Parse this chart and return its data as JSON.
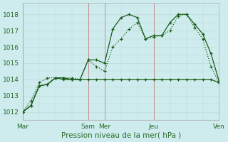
{
  "bg_color": "#ceeced",
  "grid_major_color": "#c0d8d8",
  "grid_minor_color": "#d8ecec",
  "line_color": "#1a5c1a",
  "text_color": "#2a6a2a",
  "xlabel": "Pression niveau de la mer( hPa )",
  "ylim": [
    1011.5,
    1018.7
  ],
  "yticks": [
    1012,
    1013,
    1014,
    1015,
    1016,
    1017,
    1018
  ],
  "x_day_positions": [
    0,
    96,
    120,
    192,
    288
  ],
  "x_day_labels": [
    "Mar",
    "Sam",
    "Mer",
    "Jeu",
    "Ven"
  ],
  "vline_positions": [
    0,
    96,
    120,
    192,
    288
  ],
  "vline_color": "#c08080",
  "series1_x": [
    0,
    12,
    24,
    36,
    48,
    60,
    72,
    84,
    96,
    108,
    120,
    132,
    144,
    156,
    168,
    180,
    192,
    204,
    216,
    228,
    240,
    252,
    264,
    276,
    288
  ],
  "series1_y": [
    1012.0,
    1012.4,
    1013.6,
    1013.7,
    1014.1,
    1014.1,
    1014.0,
    1014.0,
    1015.2,
    1015.2,
    1015.0,
    1017.1,
    1017.8,
    1018.0,
    1017.8,
    1016.5,
    1016.7,
    1016.7,
    1017.5,
    1018.0,
    1018.0,
    1017.4,
    1016.8,
    1015.6,
    1013.9
  ],
  "series2_x": [
    0,
    12,
    24,
    36,
    48,
    60,
    72,
    84,
    96,
    108,
    120,
    132,
    144,
    156,
    168,
    180,
    192,
    204,
    216,
    228,
    240,
    252,
    264,
    276,
    288
  ],
  "series2_y": [
    1012.0,
    1012.7,
    1013.8,
    1014.1,
    1014.1,
    1014.1,
    1014.1,
    1014.0,
    1015.2,
    1014.8,
    1014.5,
    1016.0,
    1016.5,
    1017.1,
    1017.5,
    1016.5,
    1016.6,
    1016.7,
    1017.0,
    1017.9,
    1018.0,
    1017.2,
    1016.5,
    1014.8,
    1013.8
  ],
  "series3_x": [
    0,
    12,
    24,
    36,
    48,
    60,
    72,
    84,
    96,
    108,
    120,
    132,
    144,
    156,
    168,
    180,
    192,
    204,
    216,
    228,
    240,
    252,
    264,
    276,
    288
  ],
  "series3_y": [
    1012.0,
    1012.4,
    1013.6,
    1013.7,
    1014.1,
    1014.0,
    1014.0,
    1014.0,
    1014.0,
    1014.0,
    1014.0,
    1014.0,
    1014.0,
    1014.0,
    1014.0,
    1014.0,
    1014.0,
    1014.0,
    1014.0,
    1014.0,
    1014.0,
    1014.0,
    1014.0,
    1014.0,
    1013.8
  ],
  "xlim": [
    0,
    288
  ]
}
